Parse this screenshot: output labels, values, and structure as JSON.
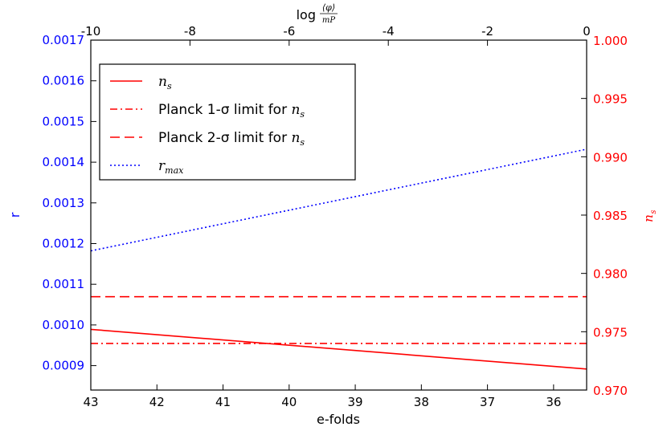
{
  "colors": {
    "left_axis": "#0000ff",
    "right_axis": "#ff0000",
    "frame": "#000000",
    "ns_line": "#ff0000",
    "r_line": "#0000ff"
  },
  "chart_data": {
    "type": "line",
    "xlabel_bottom": "e-folds",
    "xlabel_top_prefix": "log",
    "xlabel_top_numerator": "⟨φ⟩",
    "xlabel_top_denominator": "mP",
    "ylabel_left": "r",
    "ylabel_right": "n",
    "ylabel_right_sub": "s",
    "x_bottom": {
      "lim": [
        43,
        35.5
      ],
      "ticks": [
        43,
        42,
        41,
        40,
        39,
        38,
        37,
        36
      ],
      "tick_labels": [
        "43",
        "42",
        "41",
        "40",
        "39",
        "38",
        "37",
        "36"
      ]
    },
    "x_top": {
      "lim": [
        -10,
        0
      ],
      "ticks": [
        -10,
        -8,
        -6,
        -4,
        -2,
        0
      ],
      "tick_labels": [
        "-10",
        "-8",
        "-6",
        "-4",
        "-2",
        "0"
      ]
    },
    "y_left": {
      "lim": [
        0.00084,
        0.0017
      ],
      "ticks": [
        0.0009,
        0.001,
        0.0011,
        0.0012,
        0.0013,
        0.0014,
        0.0015,
        0.0016,
        0.0017
      ],
      "tick_labels": [
        "0.0009",
        "0.0010",
        "0.0011",
        "0.0012",
        "0.0013",
        "0.0014",
        "0.0015",
        "0.0016",
        "0.0017"
      ]
    },
    "y_right": {
      "lim": [
        0.97,
        1.0
      ],
      "ticks": [
        0.97,
        0.975,
        0.98,
        0.985,
        0.99,
        0.995,
        1.0
      ],
      "tick_labels": [
        "0.970",
        "0.975",
        "0.980",
        "0.985",
        "0.990",
        "0.995",
        "1.000"
      ]
    },
    "series": [
      {
        "name": "n_s",
        "axis": "right",
        "style": "solid",
        "x": [
          43,
          35.5
        ],
        "y": [
          0.9752,
          0.9718
        ]
      },
      {
        "name": "Planck 1-σ limit for n_s",
        "axis": "right",
        "style": "dashdot",
        "x": [
          43,
          35.5
        ],
        "y": [
          0.974,
          0.974
        ]
      },
      {
        "name": "Planck 2-σ limit for n_s",
        "axis": "right",
        "style": "dashed",
        "x": [
          43,
          35.5
        ],
        "y": [
          0.978,
          0.978
        ]
      },
      {
        "name": "r_max",
        "axis": "left",
        "style": "dotted",
        "x": [
          43,
          35.5
        ],
        "y": [
          0.001182,
          0.001432
        ]
      }
    ],
    "legend": {
      "placement": "top-left",
      "entries": [
        {
          "text": "",
          "math": "n",
          "sub": "s",
          "style": "solid",
          "color": "#ff0000"
        },
        {
          "text": "Planck 1-σ limit for ",
          "math": "n",
          "sub": "s",
          "style": "dashdot",
          "color": "#ff0000"
        },
        {
          "text": "Planck 2-σ limit for ",
          "math": "n",
          "sub": "s",
          "style": "dashed",
          "color": "#ff0000"
        },
        {
          "text": "",
          "math": "r",
          "sub": "max",
          "style": "dotted",
          "color": "#0000ff"
        }
      ]
    }
  }
}
